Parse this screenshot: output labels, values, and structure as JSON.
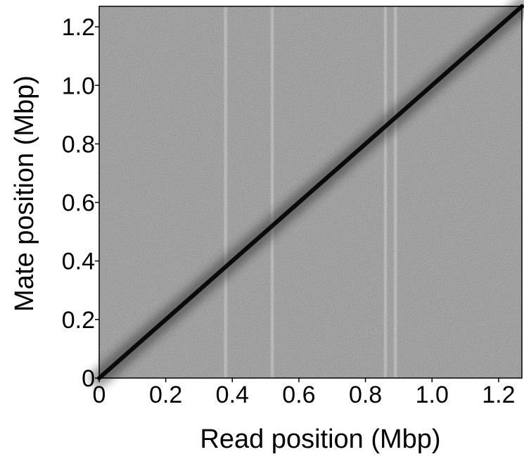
{
  "chart_data": {
    "type": "heatmap",
    "title": "",
    "xlabel": "Read position (Mbp)",
    "ylabel": "Mate position (Mbp)",
    "xlim": [
      0,
      1.27
    ],
    "ylim": [
      0,
      1.27
    ],
    "x_ticks": [
      {
        "value": 0,
        "label": "0"
      },
      {
        "value": 0.2,
        "label": "0.2"
      },
      {
        "value": 0.4,
        "label": "0.4"
      },
      {
        "value": 0.6,
        "label": "0.6"
      },
      {
        "value": 0.8,
        "label": "0.8"
      },
      {
        "value": 1.0,
        "label": "1.0"
      },
      {
        "value": 1.2,
        "label": "1.2"
      }
    ],
    "y_ticks": [
      {
        "value": 0,
        "label": "0"
      },
      {
        "value": 0.2,
        "label": "0.2"
      },
      {
        "value": 0.4,
        "label": "0.4"
      },
      {
        "value": 0.6,
        "label": "0.6"
      },
      {
        "value": 0.8,
        "label": "0.8"
      },
      {
        "value": 1.0,
        "label": "1.0"
      },
      {
        "value": 1.2,
        "label": "1.2"
      }
    ],
    "diagonal": {
      "from": [
        0,
        0
      ],
      "to": [
        1.27,
        1.27
      ]
    },
    "light_columns_at": [
      0.38,
      0.52,
      0.86,
      0.89
    ],
    "colors": {
      "background_noise": "#9a9a9a",
      "diagonal": "#000000",
      "frame": "#000000"
    },
    "grid": false,
    "legend": "none"
  }
}
